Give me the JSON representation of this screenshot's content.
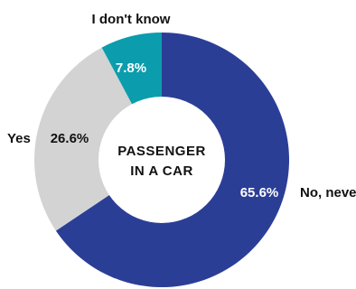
{
  "chart_data": {
    "type": "pie",
    "center_label": [
      "PASSENGER",
      "IN A CAR"
    ],
    "slices": [
      {
        "label": "No, never",
        "value": 65.6,
        "value_label": "65.6%",
        "color": "#2b3e96",
        "value_text_color": "#ffffff"
      },
      {
        "label": "Yes",
        "value": 26.6,
        "value_label": "26.6%",
        "color": "#d3d3d3",
        "value_text_color": "#111111"
      },
      {
        "label": "I don't know",
        "value": 7.8,
        "value_label": "7.8%",
        "color": "#0b9dad",
        "value_text_color": "#ffffff"
      }
    ]
  }
}
